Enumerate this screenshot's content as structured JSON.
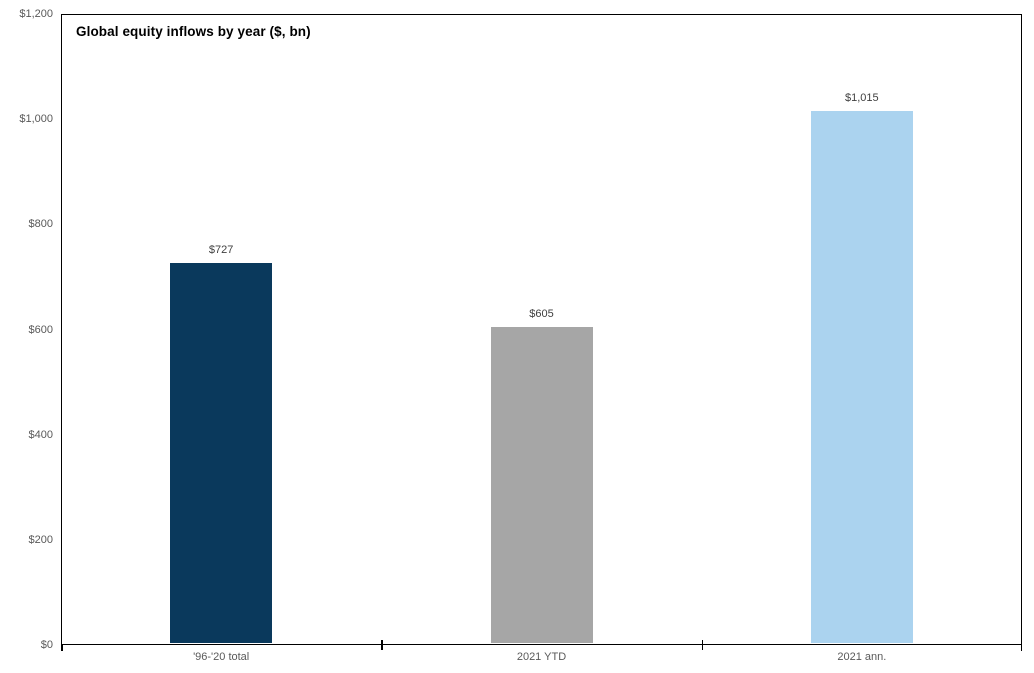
{
  "chart_data": {
    "type": "bar",
    "title": "Global equity inflows by year ($, bn)",
    "categories": [
      "'96-'20 total",
      "2021 YTD",
      "2021 ann."
    ],
    "values": [
      727,
      605,
      1015
    ],
    "value_labels": [
      "$727",
      "$605",
      "$1,015"
    ],
    "bar_colors": [
      "#0a395c",
      "#a6a6a6",
      "#abd3ef"
    ],
    "ylim": [
      0,
      1200
    ],
    "ytick_interval": 200,
    "ytick_labels": [
      "$0",
      "$200",
      "$400",
      "$600",
      "$800",
      "$1,000",
      "$1,200"
    ],
    "xlabel": "",
    "ylabel": "",
    "grid": false,
    "legend": "none",
    "colors": {
      "frame": "#000000",
      "axis_label": "#595959",
      "value_label": "#404040",
      "title": "#000000",
      "background": "#ffffff"
    }
  }
}
